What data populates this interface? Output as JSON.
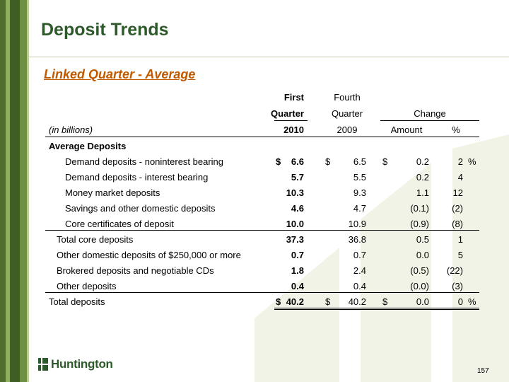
{
  "title": "Deposit Trends",
  "subtitle": "Linked Quarter - Average",
  "header": {
    "first_quarter_1": "First",
    "first_quarter_2": "Quarter",
    "first_quarter_year": "2010",
    "fourth_quarter_1": "Fourth",
    "fourth_quarter_2": "Quarter",
    "fourth_quarter_year": "2009",
    "change": "Change",
    "amount": "Amount",
    "percent": "%",
    "units": "(in billions)"
  },
  "rows": [
    {
      "label": "Average Deposits",
      "q1_cur": "",
      "q1": "",
      "q4_cur": "",
      "q4": "",
      "amt_cur": "",
      "amt": "",
      "pct": "",
      "pct_sym": "",
      "section": true
    },
    {
      "label": "Demand deposits - noninterest bearing",
      "q1_cur": "$",
      "q1": "6.6",
      "q4_cur": "$",
      "q4": "6.5",
      "amt_cur": "$",
      "amt": "0.2",
      "pct": "2",
      "pct_sym": "%"
    },
    {
      "label": "Demand deposits - interest bearing",
      "q1_cur": "",
      "q1": "5.7",
      "q4_cur": "",
      "q4": "5.5",
      "amt_cur": "",
      "amt": "0.2",
      "pct": "4",
      "pct_sym": ""
    },
    {
      "label": "Money market deposits",
      "q1_cur": "",
      "q1": "10.3",
      "q4_cur": "",
      "q4": "9.3",
      "amt_cur": "",
      "amt": "1.1",
      "pct": "12",
      "pct_sym": ""
    },
    {
      "label": "Savings and other domestic deposits",
      "q1_cur": "",
      "q1": "4.6",
      "q4_cur": "",
      "q4": "4.7",
      "amt_cur": "",
      "amt": "(0.1)",
      "pct": "(2)",
      "pct_sym": ""
    },
    {
      "label": "Core certificates of deposit",
      "q1_cur": "",
      "q1": "10.0",
      "q4_cur": "",
      "q4": "10.9",
      "amt_cur": "",
      "amt": "(0.9)",
      "pct": "(8)",
      "pct_sym": ""
    },
    {
      "label": "Total core deposits",
      "q1_cur": "",
      "q1": "37.3",
      "q4_cur": "",
      "q4": "36.8",
      "amt_cur": "",
      "amt": "0.5",
      "pct": "1",
      "pct_sym": ""
    },
    {
      "label": "Other domestic deposits of $250,000 or more",
      "q1_cur": "",
      "q1": "0.7",
      "q4_cur": "",
      "q4": "0.7",
      "amt_cur": "",
      "amt": "0.0",
      "pct": "5",
      "pct_sym": ""
    },
    {
      "label": "Brokered deposits and negotiable CDs",
      "q1_cur": "",
      "q1": "1.8",
      "q4_cur": "",
      "q4": "2.4",
      "amt_cur": "",
      "amt": "(0.5)",
      "pct": "(22)",
      "pct_sym": ""
    },
    {
      "label": "Other deposits",
      "q1_cur": "",
      "q1": "0.4",
      "q4_cur": "",
      "q4": "0.4",
      "amt_cur": "",
      "amt": "(0.0)",
      "pct": "(3)",
      "pct_sym": ""
    },
    {
      "label": "Total deposits",
      "q1_cur": "$",
      "q1": "40.2",
      "q4_cur": "$",
      "q4": "40.2",
      "amt_cur": "$",
      "amt": "0.0",
      "pct": "0",
      "pct_sym": "%"
    }
  ],
  "logo_text": "Huntington",
  "page_number": "157",
  "colors": {
    "title": "#2e5a2b",
    "subtitle": "#c05a00",
    "stripe_dark": "#3f5e24"
  }
}
